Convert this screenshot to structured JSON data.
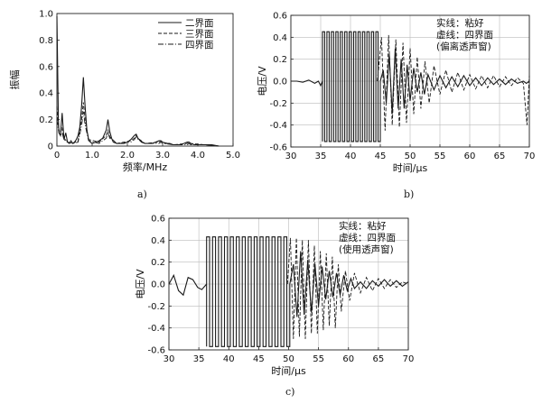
{
  "chart_data": [
    {
      "panel": "a",
      "type": "line",
      "xlabel": "频率/MHz",
      "ylabel": "振幅",
      "xlim": [
        0,
        5.0
      ],
      "ylim": [
        0,
        1.0
      ],
      "xticks": [
        "0",
        "1.0",
        "2.0",
        "3.0",
        "4.0",
        "5.0"
      ],
      "yticks": [
        "0",
        "0.2",
        "0.4",
        "0.6",
        "0.8",
        "1.0"
      ],
      "legend_position": "top-right",
      "series": [
        {
          "name": "二界面",
          "style": "solid",
          "x": [
            0,
            0.02,
            0.04,
            0.06,
            0.1,
            0.15,
            0.2,
            0.25,
            0.3,
            0.35,
            0.4,
            0.45,
            0.5,
            0.55,
            0.6,
            0.65,
            0.7,
            0.75,
            0.8,
            0.85,
            0.9,
            0.95,
            1.0,
            1.1,
            1.2,
            1.3,
            1.4,
            1.45,
            1.5,
            1.55,
            1.6,
            1.7,
            1.8,
            1.9,
            2.0,
            2.1,
            2.2,
            2.25,
            2.3,
            2.4,
            2.5,
            2.6,
            2.7,
            2.8,
            2.9,
            2.95,
            3.0,
            3.1,
            3.2,
            3.3,
            3.4,
            3.5,
            3.6,
            3.7,
            3.75,
            3.8,
            3.9,
            4.0,
            4.2,
            4.4,
            4.6
          ],
          "y": [
            0.98,
            0.6,
            0.2,
            0.1,
            0.08,
            0.25,
            0.05,
            0.1,
            0.03,
            0.02,
            0.04,
            0.02,
            0.03,
            0.05,
            0.08,
            0.14,
            0.3,
            0.52,
            0.3,
            0.12,
            0.05,
            0.03,
            0.02,
            0.03,
            0.04,
            0.06,
            0.12,
            0.2,
            0.11,
            0.06,
            0.03,
            0.02,
            0.02,
            0.02,
            0.03,
            0.05,
            0.08,
            0.09,
            0.06,
            0.03,
            0.02,
            0.02,
            0.02,
            0.03,
            0.04,
            0.04,
            0.03,
            0.02,
            0.02,
            0.01,
            0.01,
            0.01,
            0.02,
            0.03,
            0.03,
            0.02,
            0.01,
            0.01,
            0.01,
            0.01,
            0.0
          ]
        },
        {
          "name": "三界面",
          "style": "dashed",
          "x": [
            0,
            0.03,
            0.06,
            0.1,
            0.15,
            0.2,
            0.3,
            0.45,
            0.6,
            0.7,
            0.75,
            0.8,
            0.9,
            1.2,
            1.4,
            1.45,
            1.5,
            1.7,
            2.1,
            2.2,
            2.25,
            2.3,
            2.5,
            2.9,
            2.95,
            3.0,
            3.3,
            3.7,
            3.75,
            3.8,
            4.2,
            4.6
          ],
          "y": [
            0.3,
            0.18,
            0.12,
            0.1,
            0.14,
            0.06,
            0.03,
            0.02,
            0.04,
            0.2,
            0.33,
            0.2,
            0.05,
            0.03,
            0.08,
            0.12,
            0.07,
            0.02,
            0.04,
            0.06,
            0.08,
            0.06,
            0.02,
            0.03,
            0.04,
            0.03,
            0.01,
            0.02,
            0.03,
            0.02,
            0.01,
            0.0
          ]
        },
        {
          "name": "四界面",
          "style": "dashdot",
          "x": [
            0,
            0.03,
            0.06,
            0.1,
            0.15,
            0.2,
            0.3,
            0.45,
            0.6,
            0.7,
            0.75,
            0.8,
            0.9,
            1.2,
            1.4,
            1.45,
            1.5,
            1.7,
            2.1,
            2.2,
            2.25,
            2.3,
            2.5,
            2.9,
            2.95,
            3.0,
            3.3,
            3.7,
            3.75,
            3.8,
            4.2,
            4.6
          ],
          "y": [
            0.2,
            0.14,
            0.1,
            0.08,
            0.1,
            0.05,
            0.03,
            0.02,
            0.03,
            0.15,
            0.26,
            0.16,
            0.04,
            0.02,
            0.06,
            0.1,
            0.06,
            0.02,
            0.03,
            0.05,
            0.07,
            0.05,
            0.02,
            0.02,
            0.03,
            0.02,
            0.01,
            0.01,
            0.02,
            0.01,
            0.01,
            0.0
          ]
        }
      ]
    },
    {
      "panel": "b",
      "type": "line",
      "xlabel": "时间/μs",
      "ylabel": "电压/V",
      "xlim": [
        30,
        70
      ],
      "ylim": [
        -0.6,
        0.6
      ],
      "xticks": [
        "30",
        "35",
        "40",
        "45",
        "50",
        "55",
        "60",
        "65",
        "70"
      ],
      "yticks": [
        "0.6",
        "0.4",
        "0.2",
        "0.0",
        "-0.2",
        "-0.4",
        "-0.6"
      ],
      "grid": true,
      "annotation": [
        "实线：粘好",
        "虚线：四界面",
        "(偏离透声窗)"
      ],
      "series": [
        {
          "style": "solid",
          "pulses": {
            "start": 35.3,
            "end": 45.0,
            "count": 13,
            "high": 0.45,
            "low": -0.55
          },
          "x": [
            30,
            31,
            32,
            33,
            34,
            34.6,
            35.0,
            35.3,
            45.0,
            45.5,
            46.0,
            46.5,
            47.0,
            47.5,
            48.0,
            48.5,
            49.0,
            49.5,
            50.0,
            50.6,
            51.2,
            51.8,
            52.4,
            53.0,
            54.0,
            55.0,
            56.0,
            57.0,
            58.0,
            59.0,
            60.0,
            61.0,
            62.0,
            63.0,
            64.0,
            65.0,
            66.0,
            67.0,
            68.0,
            69.0,
            69.5,
            70.0
          ],
          "y": [
            0.0,
            0.0,
            -0.01,
            0.01,
            -0.02,
            0.0,
            -0.04,
            0.0,
            0.0,
            0.1,
            -0.2,
            0.25,
            -0.3,
            0.3,
            -0.25,
            0.2,
            -0.25,
            0.15,
            -0.18,
            0.12,
            -0.1,
            0.08,
            -0.12,
            0.06,
            -0.08,
            0.05,
            -0.06,
            0.04,
            -0.05,
            0.05,
            -0.04,
            0.03,
            -0.04,
            0.03,
            -0.03,
            0.02,
            -0.03,
            0.02,
            -0.02,
            0.0,
            -0.02,
            0.0
          ]
        },
        {
          "style": "dashed",
          "x": [
            44.5,
            45.2,
            45.8,
            46.4,
            47.0,
            47.6,
            48.2,
            48.8,
            49.4,
            50.0,
            50.6,
            51.2,
            51.8,
            52.5,
            53.2,
            54.0,
            55.0,
            56.0,
            57.0,
            58.0,
            59.0,
            60.0,
            61.0,
            62.0,
            63.0,
            64.0,
            65.0,
            66.0,
            67.0,
            68.0,
            69.0,
            69.6,
            70.0
          ],
          "y": [
            0.0,
            0.4,
            -0.45,
            0.42,
            -0.4,
            0.38,
            -0.42,
            0.35,
            -0.38,
            0.3,
            -0.3,
            0.22,
            -0.25,
            0.18,
            -0.2,
            0.14,
            -0.12,
            0.1,
            -0.1,
            0.08,
            -0.08,
            0.06,
            -0.07,
            0.05,
            -0.06,
            0.05,
            -0.05,
            0.04,
            -0.04,
            0.03,
            -0.02,
            -0.4,
            0.05
          ]
        }
      ]
    },
    {
      "panel": "c",
      "type": "line",
      "xlabel": "时间/μs",
      "ylabel": "电压/V",
      "xlim": [
        30,
        70
      ],
      "ylim": [
        -0.6,
        0.6
      ],
      "xticks": [
        "30",
        "35",
        "40",
        "45",
        "50",
        "55",
        "60",
        "65",
        "70"
      ],
      "yticks": [
        "0.6",
        "0.4",
        "0.2",
        "0.0",
        "-0.2",
        "-0.4",
        "-0.6"
      ],
      "grid": true,
      "annotation": [
        "实线：粘好",
        "虚线：四界面",
        "(使用透声窗)"
      ],
      "series": [
        {
          "style": "solid",
          "pulses": {
            "start": 36.3,
            "end": 50.2,
            "count": 14,
            "high": 0.43,
            "low": -0.57
          },
          "x": [
            30,
            30.8,
            31.6,
            32.4,
            33.2,
            34.0,
            34.8,
            35.5,
            36.3,
            50.2,
            50.8,
            51.4,
            52.0,
            52.6,
            53.2,
            53.8,
            54.4,
            55.0,
            55.6,
            56.2,
            56.8,
            57.4,
            58.0,
            58.6,
            59.2,
            59.8,
            60.4,
            61.0,
            62.0,
            63.0,
            64.0,
            65.0,
            66.0,
            67.0,
            68.0,
            69.0,
            70.0
          ],
          "y": [
            0.0,
            0.08,
            -0.06,
            -0.1,
            0.06,
            0.04,
            -0.03,
            -0.05,
            0.0,
            0.0,
            0.18,
            -0.3,
            0.3,
            -0.28,
            0.22,
            -0.26,
            0.18,
            -0.2,
            0.16,
            -0.14,
            0.12,
            -0.12,
            0.1,
            -0.1,
            0.08,
            -0.06,
            0.05,
            -0.04,
            0.02,
            -0.04,
            0.03,
            -0.02,
            0.04,
            -0.02,
            0.03,
            -0.02,
            0.02
          ]
        },
        {
          "style": "dashed",
          "x": [
            49.8,
            50.3,
            50.8,
            51.3,
            51.8,
            52.3,
            52.8,
            53.3,
            53.8,
            54.3,
            54.8,
            55.3,
            55.8,
            56.3,
            56.8,
            57.3,
            57.8,
            58.3,
            58.8,
            59.5,
            60.2,
            61.0,
            62.0,
            63.0,
            64.0,
            65.0,
            66.0,
            67.0,
            68.0,
            69.0,
            70.0
          ],
          "y": [
            0.0,
            0.42,
            -0.5,
            0.42,
            -0.48,
            0.4,
            -0.5,
            0.4,
            -0.45,
            0.35,
            -0.45,
            0.3,
            -0.42,
            0.28,
            -0.38,
            0.25,
            -0.4,
            0.18,
            -0.25,
            0.12,
            -0.15,
            0.1,
            -0.08,
            0.06,
            -0.06,
            0.05,
            -0.04,
            0.04,
            -0.03,
            0.02,
            0.0
          ]
        }
      ]
    }
  ],
  "captions": [
    "a)",
    "b)",
    "c)"
  ]
}
